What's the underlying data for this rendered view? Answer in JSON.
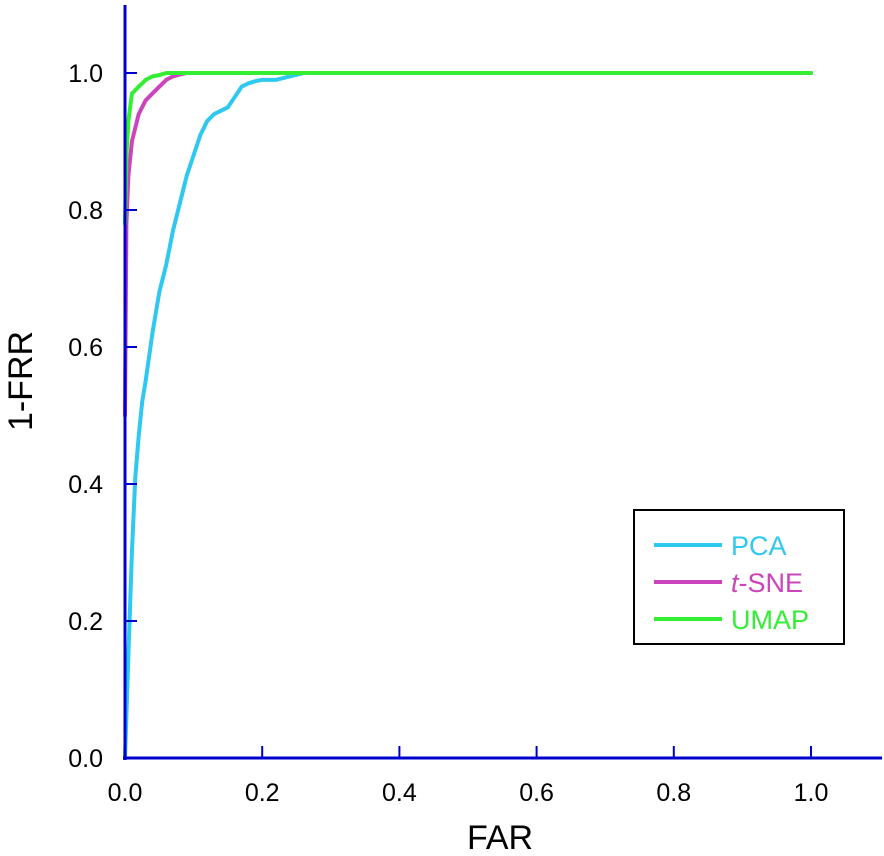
{
  "chart_data": {
    "type": "line",
    "title": "",
    "xlabel": "FAR",
    "ylabel": "1-FRR",
    "xlim": [
      0,
      1.1
    ],
    "ylim": [
      0,
      1.1
    ],
    "xticks": [
      0.0,
      0.2,
      0.4,
      0.6,
      0.8,
      1.0
    ],
    "yticks": [
      0.0,
      0.2,
      0.4,
      0.6,
      0.8,
      1.0
    ],
    "xtick_labels": [
      "0.0",
      "0.2",
      "0.4",
      "0.6",
      "0.8",
      "1.0"
    ],
    "ytick_labels": [
      "0.0",
      "0.2",
      "0.4",
      "0.6",
      "0.8",
      "1.0"
    ],
    "grid": false,
    "legend_position": "bottom-right",
    "axis_color": "#0000cc",
    "series": [
      {
        "name": "PCA",
        "color": "#2ec8f0",
        "x": [
          0.0,
          0.005,
          0.01,
          0.015,
          0.02,
          0.025,
          0.03,
          0.04,
          0.05,
          0.06,
          0.07,
          0.08,
          0.09,
          0.1,
          0.11,
          0.12,
          0.13,
          0.14,
          0.15,
          0.16,
          0.17,
          0.18,
          0.19,
          0.2,
          0.22,
          0.24,
          0.26,
          0.28,
          0.3,
          0.4,
          0.6,
          0.8,
          1.0
        ],
        "y": [
          0.0,
          0.15,
          0.3,
          0.41,
          0.47,
          0.52,
          0.55,
          0.62,
          0.68,
          0.72,
          0.77,
          0.81,
          0.85,
          0.88,
          0.91,
          0.93,
          0.94,
          0.945,
          0.95,
          0.965,
          0.98,
          0.985,
          0.988,
          0.99,
          0.99,
          0.995,
          1.0,
          1.0,
          1.0,
          1.0,
          1.0,
          1.0,
          1.0
        ]
      },
      {
        "name": "t-SNE",
        "color": "#cc44bb",
        "x": [
          0.0,
          0.002,
          0.005,
          0.01,
          0.015,
          0.02,
          0.03,
          0.04,
          0.05,
          0.06,
          0.07,
          0.08,
          0.09,
          0.1,
          0.2,
          0.4,
          0.6,
          0.8,
          1.0
        ],
        "y": [
          0.5,
          0.78,
          0.85,
          0.9,
          0.92,
          0.94,
          0.96,
          0.97,
          0.98,
          0.99,
          0.995,
          0.998,
          1.0,
          1.0,
          1.0,
          1.0,
          1.0,
          1.0,
          1.0
        ]
      },
      {
        "name": "UMAP",
        "color": "#33ee33",
        "x": [
          0.0,
          0.002,
          0.005,
          0.01,
          0.02,
          0.03,
          0.04,
          0.05,
          0.06,
          0.07,
          0.1,
          0.2,
          0.4,
          0.6,
          0.8,
          1.0
        ],
        "y": [
          0.78,
          0.88,
          0.93,
          0.97,
          0.98,
          0.99,
          0.995,
          0.997,
          1.0,
          1.0,
          1.0,
          1.0,
          1.0,
          1.0,
          1.0,
          1.0
        ]
      }
    ]
  },
  "legend": {
    "entries": [
      {
        "prefix": "",
        "italic": "",
        "text": "PCA",
        "color": "#2ec8f0"
      },
      {
        "prefix": "",
        "italic": "t",
        "text": "-SNE",
        "color": "#cc44bb"
      },
      {
        "prefix": "",
        "italic": "",
        "text": "UMAP",
        "color": "#33ee33"
      }
    ]
  }
}
